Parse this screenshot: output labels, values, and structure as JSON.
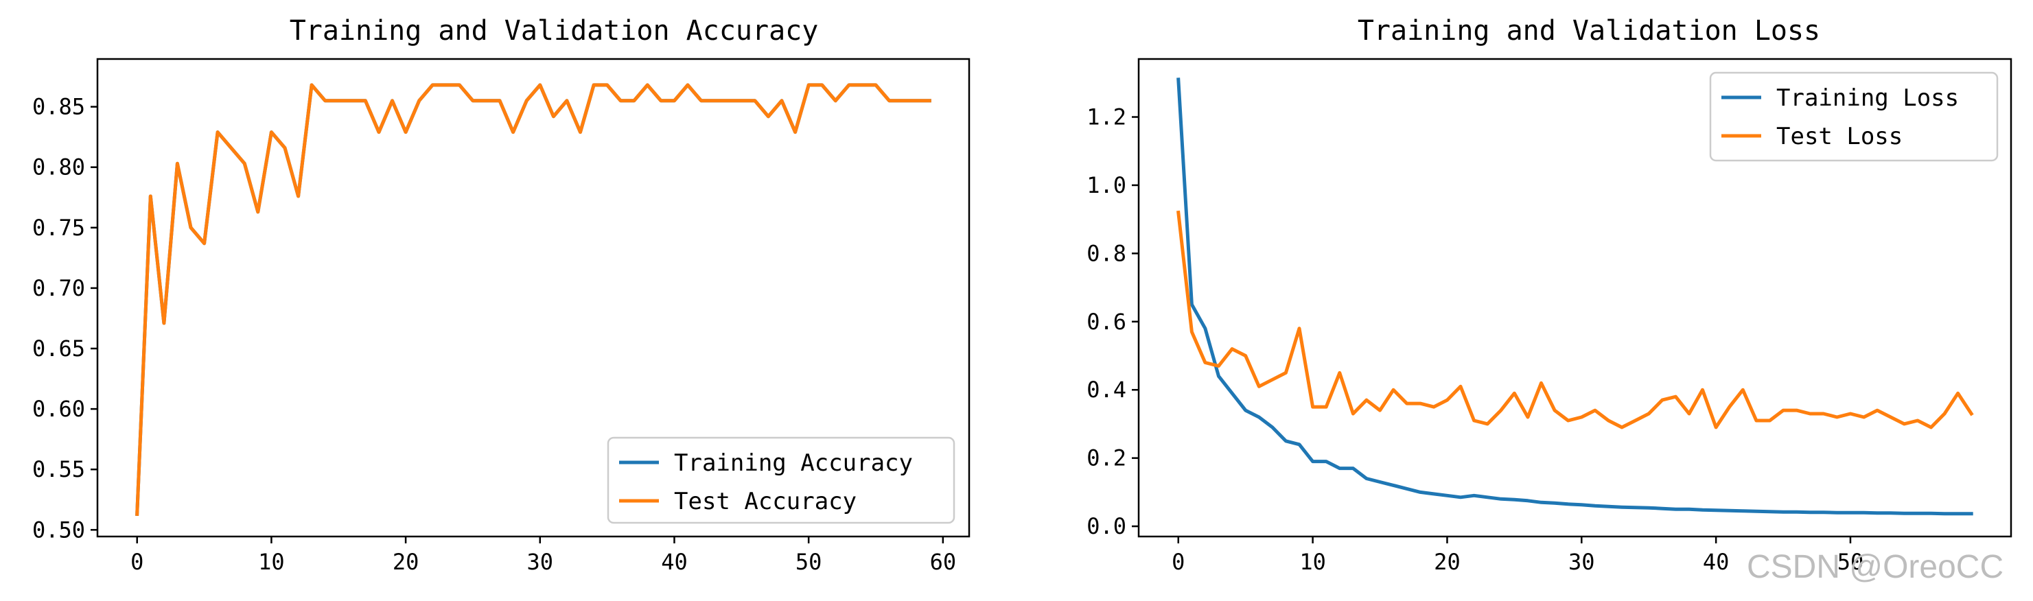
{
  "watermark": "CSDN @OreoCC",
  "colors": {
    "train": "#1f77b4",
    "test": "#ff7f0e",
    "axis": "#000000",
    "legend_border": "#cccccc"
  },
  "chart_data": [
    {
      "type": "line",
      "title": "Training and Validation Accuracy",
      "xlabel": "",
      "ylabel": "",
      "xlim": [
        -2.95,
        61.95
      ],
      "ylim": [
        0.4945,
        0.8895
      ],
      "x_ticks": [
        0,
        10,
        20,
        30,
        40,
        50,
        60
      ],
      "x_tick_labels": [
        "0",
        "10",
        "20",
        "30",
        "40",
        "50",
        "60"
      ],
      "y_ticks": [
        0.5,
        0.55,
        0.6,
        0.65,
        0.7,
        0.75,
        0.8,
        0.85
      ],
      "y_tick_labels": [
        "0.50",
        "0.55",
        "0.60",
        "0.65",
        "0.70",
        "0.75",
        "0.80",
        "0.85"
      ],
      "grid": false,
      "legend_position": "lower right",
      "x": [
        0,
        1,
        2,
        3,
        4,
        5,
        6,
        7,
        8,
        9,
        10,
        11,
        12,
        13,
        14,
        15,
        16,
        17,
        18,
        19,
        20,
        21,
        22,
        23,
        24,
        25,
        26,
        27,
        28,
        29,
        30,
        31,
        32,
        33,
        34,
        35,
        36,
        37,
        38,
        39,
        40,
        41,
        42,
        43,
        44,
        45,
        46,
        47,
        48,
        49,
        50,
        51,
        52,
        53,
        54,
        55,
        56,
        57,
        58,
        59
      ],
      "series": [
        {
          "name": "Training Accuracy",
          "color": "#1f77b4",
          "values": [
            0.513,
            0.776,
            0.671,
            0.803,
            0.75,
            0.737,
            0.829,
            0.816,
            0.803,
            0.763,
            0.829,
            0.816,
            0.776,
            0.868,
            0.855,
            0.855,
            0.855,
            0.855,
            0.829,
            0.855,
            0.829,
            0.855,
            0.868,
            0.868,
            0.868,
            0.855,
            0.855,
            0.855,
            0.829,
            0.855,
            0.868,
            0.842,
            0.855,
            0.829,
            0.868,
            0.868,
            0.855,
            0.855,
            0.868,
            0.855,
            0.855,
            0.868,
            0.855,
            0.855,
            0.855,
            0.855,
            0.855,
            0.842,
            0.855,
            0.829,
            0.868,
            0.868,
            0.855,
            0.868,
            0.868,
            0.868,
            0.855,
            0.855,
            0.855,
            0.855
          ]
        },
        {
          "name": "Test Accuracy",
          "color": "#ff7f0e",
          "values": [
            0.513,
            0.776,
            0.671,
            0.803,
            0.75,
            0.737,
            0.829,
            0.816,
            0.803,
            0.763,
            0.829,
            0.816,
            0.776,
            0.868,
            0.855,
            0.855,
            0.855,
            0.855,
            0.829,
            0.855,
            0.829,
            0.855,
            0.868,
            0.868,
            0.868,
            0.855,
            0.855,
            0.855,
            0.829,
            0.855,
            0.868,
            0.842,
            0.855,
            0.829,
            0.868,
            0.868,
            0.855,
            0.855,
            0.868,
            0.855,
            0.855,
            0.868,
            0.855,
            0.855,
            0.855,
            0.855,
            0.855,
            0.842,
            0.855,
            0.829,
            0.868,
            0.868,
            0.855,
            0.868,
            0.868,
            0.868,
            0.855,
            0.855,
            0.855,
            0.855
          ]
        }
      ]
    },
    {
      "type": "line",
      "title": "Training and Validation Loss",
      "xlabel": "",
      "ylabel": "",
      "xlim": [
        -2.95,
        61.95
      ],
      "ylim": [
        -0.03,
        1.37
      ],
      "x_ticks": [
        0,
        10,
        20,
        30,
        40,
        50
      ],
      "x_tick_labels": [
        "0",
        "10",
        "20",
        "30",
        "40",
        "50"
      ],
      "y_ticks": [
        0.0,
        0.2,
        0.4,
        0.6,
        0.8,
        1.0,
        1.2
      ],
      "y_tick_labels": [
        "0.0",
        "0.2",
        "0.4",
        "0.6",
        "0.8",
        "1.0",
        "1.2"
      ],
      "grid": false,
      "legend_position": "upper right",
      "x": [
        0,
        1,
        2,
        3,
        4,
        5,
        6,
        7,
        8,
        9,
        10,
        11,
        12,
        13,
        14,
        15,
        16,
        17,
        18,
        19,
        20,
        21,
        22,
        23,
        24,
        25,
        26,
        27,
        28,
        29,
        30,
        31,
        32,
        33,
        34,
        35,
        36,
        37,
        38,
        39,
        40,
        41,
        42,
        43,
        44,
        45,
        46,
        47,
        48,
        49,
        50,
        51,
        52,
        53,
        54,
        55,
        56,
        57,
        58,
        59
      ],
      "series": [
        {
          "name": "Training Loss",
          "color": "#1f77b4",
          "values": [
            1.31,
            0.65,
            0.58,
            0.44,
            0.39,
            0.34,
            0.32,
            0.29,
            0.25,
            0.24,
            0.19,
            0.19,
            0.17,
            0.17,
            0.14,
            0.13,
            0.12,
            0.11,
            0.1,
            0.095,
            0.09,
            0.085,
            0.09,
            0.085,
            0.08,
            0.078,
            0.075,
            0.07,
            0.068,
            0.065,
            0.063,
            0.06,
            0.058,
            0.056,
            0.055,
            0.054,
            0.052,
            0.05,
            0.05,
            0.048,
            0.047,
            0.046,
            0.045,
            0.044,
            0.043,
            0.042,
            0.042,
            0.041,
            0.041,
            0.04,
            0.04,
            0.04,
            0.039,
            0.039,
            0.038,
            0.038,
            0.038,
            0.037,
            0.037,
            0.037
          ]
        },
        {
          "name": "Test Loss",
          "color": "#ff7f0e",
          "values": [
            0.92,
            0.57,
            0.48,
            0.47,
            0.52,
            0.5,
            0.41,
            0.43,
            0.45,
            0.58,
            0.35,
            0.35,
            0.45,
            0.33,
            0.37,
            0.34,
            0.4,
            0.36,
            0.36,
            0.35,
            0.37,
            0.41,
            0.31,
            0.3,
            0.34,
            0.39,
            0.32,
            0.42,
            0.34,
            0.31,
            0.32,
            0.34,
            0.31,
            0.29,
            0.31,
            0.33,
            0.37,
            0.38,
            0.33,
            0.4,
            0.29,
            0.35,
            0.4,
            0.31,
            0.31,
            0.34,
            0.34,
            0.33,
            0.33,
            0.32,
            0.33,
            0.32,
            0.34,
            0.32,
            0.3,
            0.31,
            0.29,
            0.33,
            0.39,
            0.33
          ]
        }
      ]
    }
  ]
}
